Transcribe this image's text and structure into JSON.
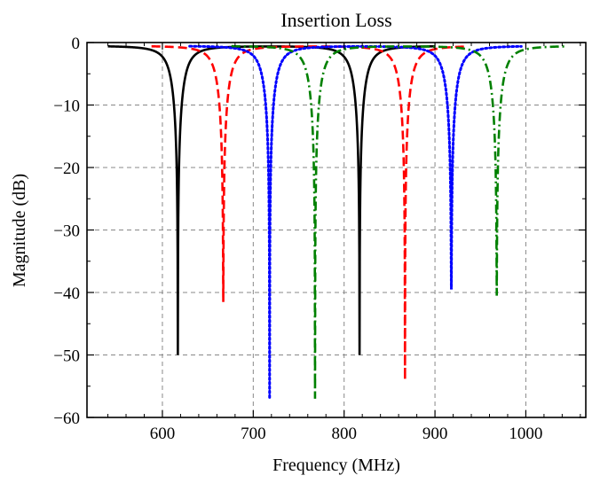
{
  "chart_data": {
    "type": "line",
    "title": "Insertion Loss",
    "xlabel": "Frequency (MHz)",
    "ylabel": "Magnitude (dB)",
    "xlim": [
      517,
      1066
    ],
    "ylim": [
      -60,
      0
    ],
    "xticks": [
      600,
      700,
      800,
      900,
      1000
    ],
    "yticks": [
      0,
      -10,
      -20,
      -30,
      -40,
      -50,
      -60
    ],
    "xtick_labels": [
      "600",
      "700",
      "800",
      "900",
      "1000"
    ],
    "ytick_labels": [
      "0",
      "−10",
      "−20",
      "−30",
      "−40",
      "−50",
      "−60"
    ],
    "grid": true,
    "baseline_db": -0.5,
    "series": [
      {
        "color": "#000000",
        "style": "solid",
        "x_range": [
          540,
          900
        ],
        "dips": [
          {
            "f": 617,
            "depth": -50
          },
          {
            "f": 817,
            "depth": -50
          }
        ]
      },
      {
        "color": "#ff0000",
        "style": "dashed",
        "x_range": [
          588,
          935
        ],
        "dips": [
          {
            "f": 667,
            "depth": -41
          },
          {
            "f": 867,
            "depth": -54
          }
        ]
      },
      {
        "color": "#0000ff",
        "style": "dotted",
        "x_range": [
          630,
          995
        ],
        "dips": [
          {
            "f": 718,
            "depth": -57
          },
          {
            "f": 918,
            "depth": -39
          }
        ]
      },
      {
        "color": "#008000",
        "style": "dashdot",
        "x_range": [
          676,
          1045
        ],
        "dips": [
          {
            "f": 768,
            "depth": -57
          },
          {
            "f": 968,
            "depth": -40
          }
        ]
      }
    ]
  }
}
